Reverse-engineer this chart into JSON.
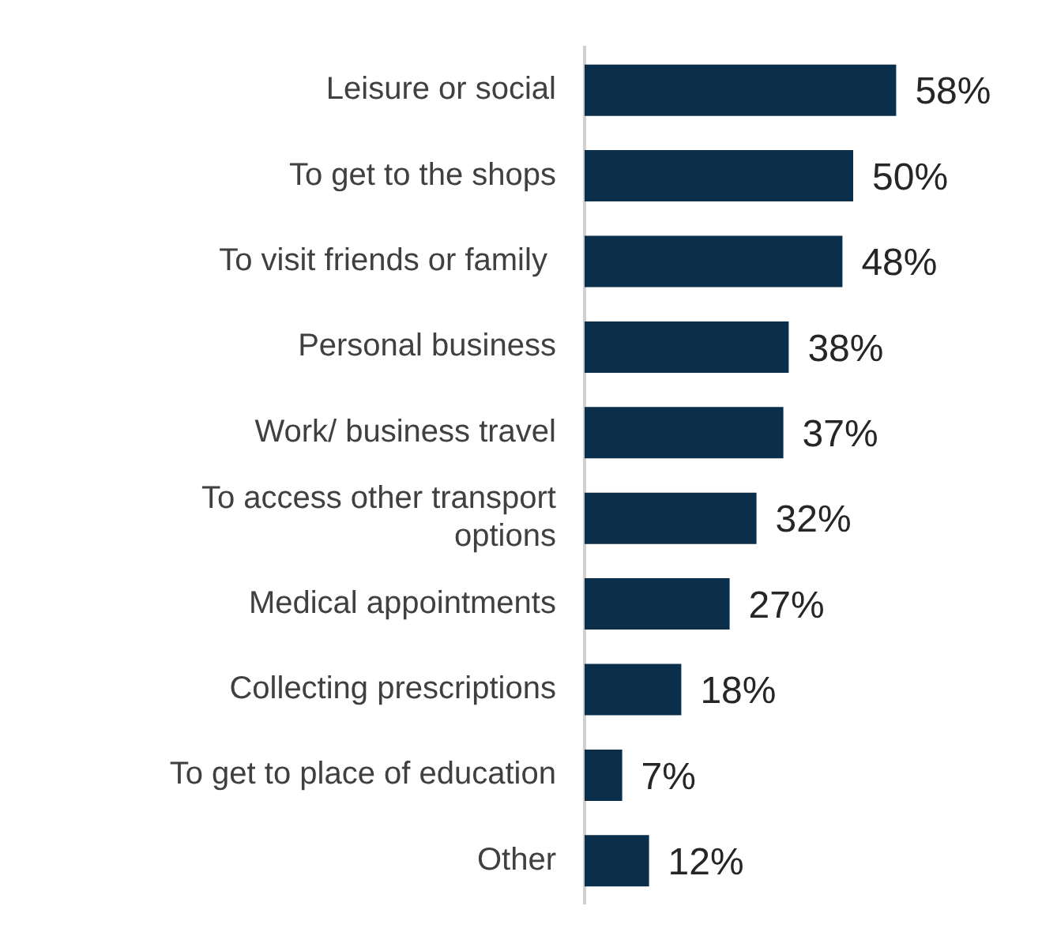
{
  "chart_data": {
    "type": "bar",
    "orientation": "horizontal",
    "categories": [
      "Leisure or social",
      "To get to the shops",
      "To visit friends or family ",
      "Personal business",
      "Work/ business travel",
      "To access other transport options",
      "Medical appointments",
      "Collecting prescriptions",
      "To get to place of education",
      "Other"
    ],
    "values": [
      58,
      50,
      48,
      38,
      37,
      32,
      27,
      18,
      7,
      12
    ],
    "value_labels": [
      "58%",
      "50%",
      "48%",
      "38%",
      "37%",
      "32%",
      "27%",
      "18%",
      "7%",
      "12%"
    ],
    "color": "#0b2e4a",
    "tick_labels": "y"
  }
}
